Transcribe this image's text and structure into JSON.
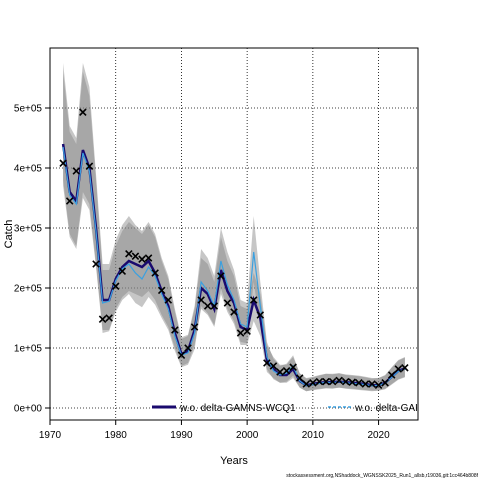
{
  "chart_data": {
    "type": "line",
    "xlabel": "Years",
    "ylabel": "Catch",
    "xlim": [
      1970,
      2026
    ],
    "ylim": [
      -20000,
      600000
    ],
    "x_ticks": [
      "1970",
      "1980",
      "1990",
      "2000",
      "2010",
      "2020"
    ],
    "x_tick_values": [
      1970,
      1980,
      1990,
      2000,
      2010,
      2020
    ],
    "y_ticks": [
      "0e+00",
      "1e+05",
      "2e+05",
      "3e+05",
      "4e+05",
      "5e+05"
    ],
    "y_tick_values": [
      0,
      100000,
      200000,
      300000,
      400000,
      500000
    ],
    "grid": true,
    "legend_position": "bottom",
    "footnote": "stockassessment.org,NShaddock_WGNSSK2025_Run1_allsb,r19036,git:1cc464b808f",
    "observed": {
      "marker": "x",
      "x": [
        1972,
        1973,
        1974,
        1975,
        1976,
        1977,
        1978,
        1979,
        1980,
        1981,
        1982,
        1983,
        1984,
        1985,
        1986,
        1987,
        1988,
        1989,
        1990,
        1991,
        1992,
        1993,
        1994,
        1995,
        1996,
        1997,
        1998,
        1999,
        2000,
        2001,
        2002,
        2003,
        2004,
        2005,
        2006,
        2007,
        2008,
        2009,
        2010,
        2011,
        2012,
        2013,
        2014,
        2015,
        2016,
        2017,
        2018,
        2019,
        2020,
        2021,
        2022,
        2023,
        2024
      ],
      "y": [
        408000,
        345000,
        395000,
        493000,
        403000,
        240000,
        148000,
        150000,
        203000,
        228000,
        257000,
        253000,
        248000,
        250000,
        225000,
        196000,
        180000,
        130000,
        88000,
        100000,
        135000,
        180000,
        170000,
        170000,
        220000,
        175000,
        160000,
        125000,
        128000,
        180000,
        155000,
        75000,
        70000,
        60000,
        62000,
        68000,
        50000,
        40000,
        42000,
        44000,
        44000,
        44000,
        46000,
        44000,
        43000,
        42000,
        40000,
        40000,
        38000,
        42000,
        55000,
        65000,
        67000
      ]
    },
    "series": [
      {
        "name": "w.o. delta-GAMNS-WCQ1",
        "color": "#1a0a6e",
        "x": [
          1972,
          1973,
          1974,
          1975,
          1976,
          1977,
          1978,
          1979,
          1980,
          1981,
          1982,
          1983,
          1984,
          1985,
          1986,
          1987,
          1988,
          1989,
          1990,
          1991,
          1992,
          1993,
          1994,
          1995,
          1996,
          1997,
          1998,
          1999,
          2000,
          2001,
          2002,
          2003,
          2004,
          2005,
          2006,
          2007,
          2008,
          2009,
          2010,
          2011,
          2012,
          2013,
          2014,
          2015,
          2016,
          2017,
          2018,
          2019,
          2020,
          2021,
          2022,
          2023,
          2024
        ],
        "y": [
          440000,
          360000,
          345000,
          430000,
          400000,
          300000,
          180000,
          180000,
          215000,
          235000,
          245000,
          240000,
          235000,
          245000,
          225000,
          195000,
          170000,
          125000,
          90000,
          95000,
          130000,
          200000,
          190000,
          165000,
          230000,
          195000,
          175000,
          135000,
          130000,
          180000,
          150000,
          80000,
          65000,
          55000,
          55000,
          65000,
          45000,
          38000,
          40000,
          42000,
          43000,
          43000,
          44000,
          43000,
          42000,
          41000,
          40000,
          38000,
          38000,
          42000,
          52000,
          62000,
          66000
        ],
        "lower": [
          380000,
          290000,
          270000,
          360000,
          340000,
          240000,
          130000,
          130000,
          165000,
          185000,
          195000,
          190000,
          185000,
          195000,
          180000,
          155000,
          135000,
          100000,
          70000,
          75000,
          105000,
          165000,
          155000,
          135000,
          190000,
          160000,
          140000,
          105000,
          105000,
          145000,
          120000,
          60000,
          50000,
          42000,
          42000,
          50000,
          34000,
          28000,
          30000,
          32000,
          33000,
          33000,
          34000,
          33000,
          32000,
          31000,
          30000,
          29000,
          29000,
          32000,
          40000,
          48000,
          52000
        ],
        "upper": [
          560000,
          460000,
          440000,
          560000,
          520000,
          380000,
          230000,
          230000,
          270000,
          295000,
          310000,
          300000,
          290000,
          305000,
          285000,
          245000,
          215000,
          160000,
          115000,
          120000,
          165000,
          250000,
          240000,
          210000,
          285000,
          245000,
          220000,
          170000,
          165000,
          225000,
          190000,
          105000,
          85000,
          72000,
          72000,
          85000,
          58000,
          50000,
          52000,
          55000,
          57000,
          57000,
          58000,
          56000,
          55000,
          54000,
          52000,
          50000,
          50000,
          55000,
          68000,
          80000,
          85000
        ]
      },
      {
        "name": "w.o. delta-GAI",
        "color": "#3aa0e0",
        "x": [
          1972,
          1973,
          1974,
          1975,
          1976,
          1977,
          1978,
          1979,
          1980,
          1981,
          1982,
          1983,
          1984,
          1985,
          1986,
          1987,
          1988,
          1989,
          1990,
          1991,
          1992,
          1993,
          1994,
          1995,
          1996,
          1997,
          1998,
          1999,
          2000,
          2001,
          2002,
          2003,
          2004,
          2005,
          2006,
          2007,
          2008,
          2009,
          2010,
          2011,
          2012,
          2013,
          2014,
          2015,
          2016,
          2017,
          2018,
          2019,
          2020,
          2021,
          2022,
          2023,
          2024
        ],
        "y": [
          435000,
          355000,
          340000,
          425000,
          395000,
          295000,
          175000,
          178000,
          212000,
          232000,
          240000,
          225000,
          215000,
          235000,
          220000,
          190000,
          165000,
          120000,
          88000,
          92000,
          125000,
          210000,
          195000,
          170000,
          245000,
          205000,
          180000,
          140000,
          135000,
          260000,
          170000,
          85000,
          62000,
          55000,
          58000,
          70000,
          45000,
          37000,
          39000,
          41000,
          43000,
          42000,
          44000,
          42000,
          41000,
          40000,
          39000,
          37000,
          38000,
          41000,
          51000,
          61000,
          65000
        ],
        "lower": [
          370000,
          285000,
          265000,
          350000,
          330000,
          235000,
          125000,
          128000,
          160000,
          180000,
          190000,
          175000,
          168000,
          185000,
          172000,
          150000,
          130000,
          95000,
          68000,
          72000,
          98000,
          170000,
          158000,
          138000,
          200000,
          165000,
          145000,
          110000,
          108000,
          210000,
          135000,
          65000,
          48000,
          42000,
          44000,
          54000,
          34000,
          28000,
          30000,
          31000,
          33000,
          32000,
          34000,
          32000,
          31000,
          30000,
          29000,
          28000,
          29000,
          31000,
          39000,
          47000,
          51000
        ],
        "upper": [
          575000,
          470000,
          450000,
          575000,
          535000,
          390000,
          240000,
          240000,
          280000,
          305000,
          320000,
          305000,
          295000,
          310000,
          290000,
          250000,
          220000,
          165000,
          118000,
          122000,
          170000,
          265000,
          250000,
          220000,
          300000,
          260000,
          230000,
          180000,
          175000,
          320000,
          210000,
          110000,
          82000,
          70000,
          74000,
          88000,
          58000,
          49000,
          51000,
          54000,
          57000,
          56000,
          58000,
          55000,
          54000,
          53000,
          51000,
          49000,
          50000,
          54000,
          67000,
          79000,
          84000
        ]
      }
    ]
  }
}
